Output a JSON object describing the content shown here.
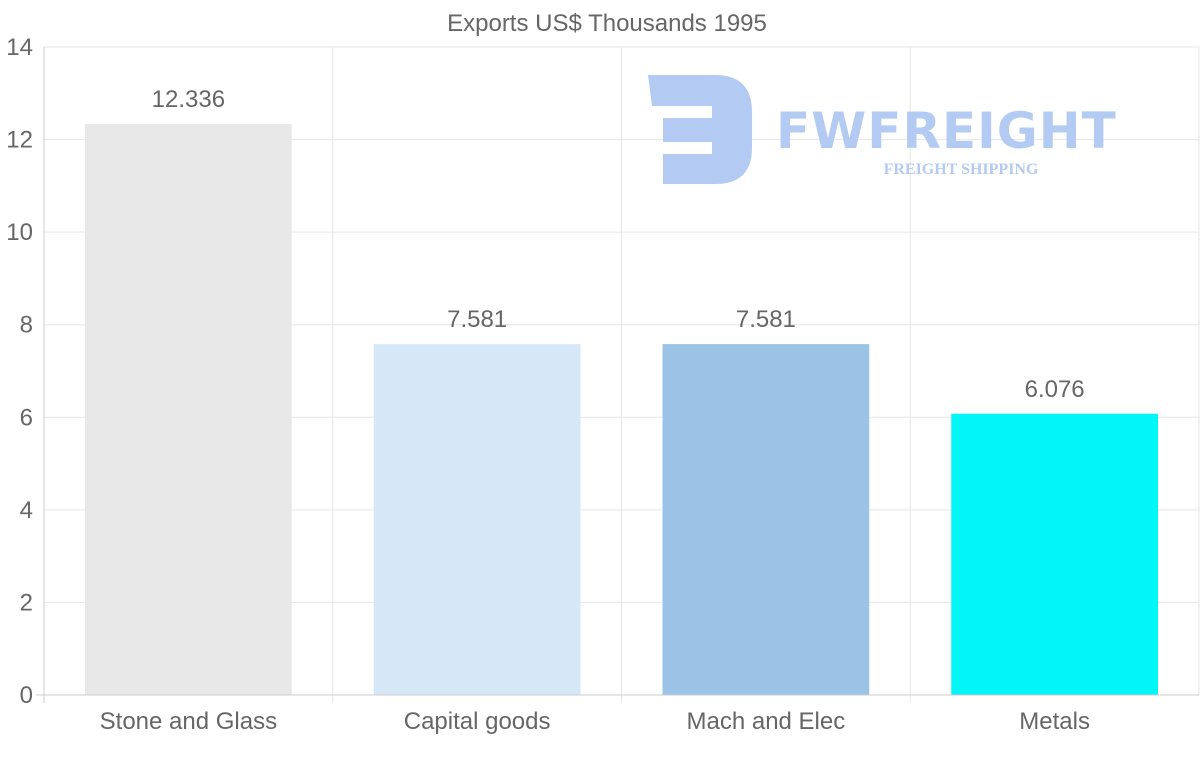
{
  "chart_data": {
    "type": "bar",
    "title": "Exports US$ Thousands 1995",
    "categories": [
      "Stone and Glass",
      "Capital goods",
      "Mach and Elec",
      "Metals"
    ],
    "values": [
      12.336,
      7.581,
      7.581,
      6.076
    ],
    "value_labels": [
      "12.336",
      "7.581",
      "7.581",
      "6.076"
    ],
    "bar_colors": [
      "#e8e8e8",
      "#d6e7f8",
      "#9ac3e6",
      "#00f6f7"
    ],
    "ylim": [
      0,
      14
    ],
    "yticks": [
      0,
      2,
      4,
      6,
      8,
      10,
      12,
      14
    ],
    "xlabel": "",
    "ylabel": "",
    "grid": true,
    "legend": "none"
  },
  "watermark": {
    "brand": "FWFREIGHT",
    "tagline": "FREIGHT SHIPPING",
    "color": "#b3cbf2"
  },
  "colors": {
    "text": "#666666",
    "grid": "#e6e6e6",
    "axis": "#cccccc"
  }
}
